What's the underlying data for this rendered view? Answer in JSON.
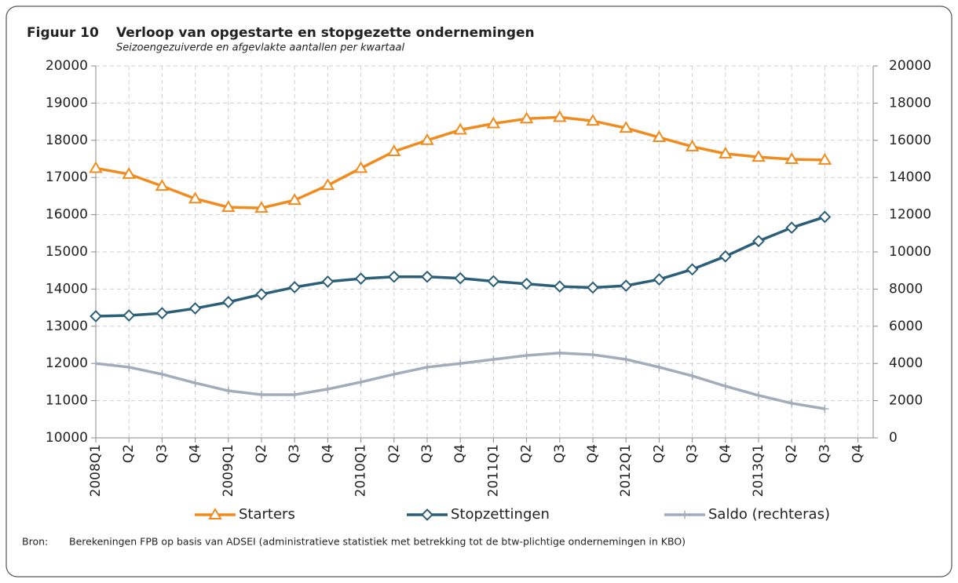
{
  "figure_label": "Figuur 10",
  "source_label": "Bron:",
  "source": "Berekeningen FPB op basis van ADSEI (administratieve statistiek met betrekking tot de btw-plichtige ondernemingen in KBO)",
  "chart_data": {
    "type": "line",
    "title": "Verloop van opgestarte en stopgezette ondernemingen",
    "subtitle": "Seizoengezuiverde en afgevlakte aantallen per kwartaal",
    "categories": [
      "2008Q1",
      "Q2",
      "Q3",
      "Q4",
      "2009Q1",
      "Q2",
      "Q3",
      "Q4",
      "2010Q1",
      "Q2",
      "Q3",
      "Q4",
      "2011Q1",
      "Q2",
      "Q3",
      "Q4",
      "2012Q1",
      "Q2",
      "Q3",
      "Q4",
      "2013Q1",
      "Q2",
      "Q3",
      "Q4"
    ],
    "series": [
      {
        "name": "Starters",
        "color": "#f08c1e",
        "marker": "triangle",
        "values": [
          17250,
          17090,
          16770,
          16430,
          16200,
          16180,
          16390,
          16790,
          17250,
          17700,
          18000,
          18280,
          18450,
          18580,
          18620,
          18520,
          18330,
          18080,
          17830,
          17640,
          17550,
          17490,
          17470,
          null
        ]
      },
      {
        "name": "Stopzettingen",
        "color": "#2b5f78",
        "marker": "diamond",
        "values": [
          13270,
          13290,
          13350,
          13480,
          13650,
          13860,
          14050,
          14200,
          14280,
          14330,
          14330,
          14290,
          14210,
          14140,
          14070,
          14040,
          14090,
          14260,
          14530,
          14880,
          15290,
          15650,
          15940,
          null
        ]
      },
      {
        "name": "Saldo (rechteras)",
        "color": "#a2acba",
        "marker": "plus",
        "axis": "y2",
        "values": [
          4000,
          3800,
          3420,
          2950,
          2530,
          2320,
          2320,
          2620,
          3000,
          3420,
          3800,
          4000,
          4220,
          4430,
          4560,
          4470,
          4220,
          3800,
          3330,
          2780,
          2280,
          1860,
          1560,
          null
        ]
      }
    ],
    "ylim": [
      10000,
      20000
    ],
    "yticks": [
      10000,
      11000,
      12000,
      13000,
      14000,
      15000,
      16000,
      17000,
      18000,
      19000,
      20000
    ],
    "y2lim": [
      0,
      20000
    ],
    "y2ticks": [
      0,
      2000,
      4000,
      6000,
      8000,
      10000,
      12000,
      14000,
      16000,
      18000,
      20000
    ],
    "grid": true,
    "legend": "bottom"
  }
}
